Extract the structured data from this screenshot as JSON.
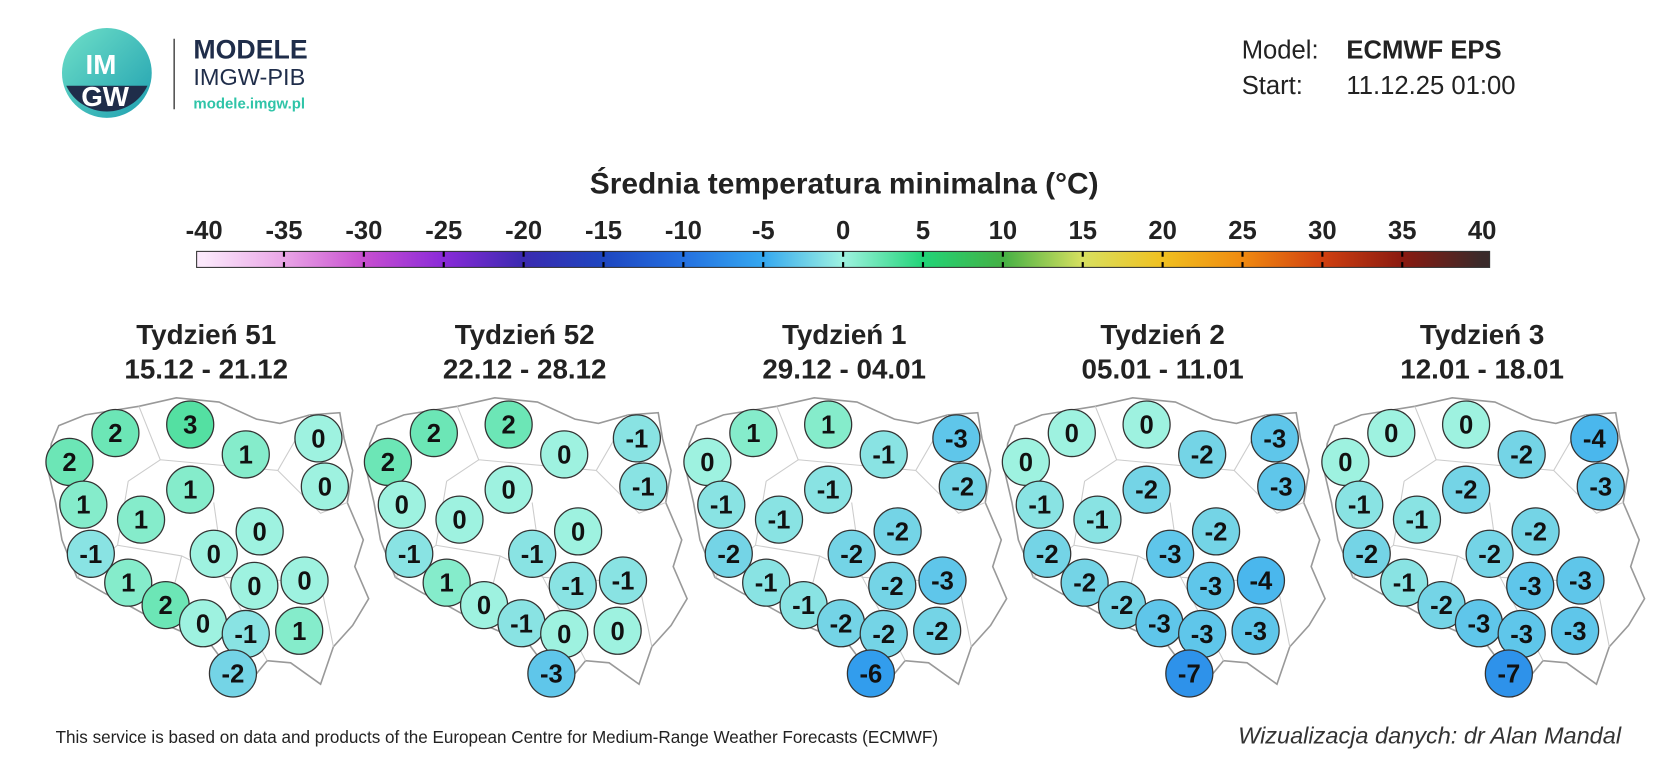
{
  "header": {
    "logo": {
      "top": "IM",
      "bottom": "GW"
    },
    "brand": "MODELE",
    "org": "IMGW-PIB",
    "url": "modele.imgw.pl",
    "model_label": "Model:",
    "model": "ECMWF EPS",
    "start_label": "Start:",
    "start": "11.12.25 01:00"
  },
  "colorbar": {
    "title": "Średnia temperatura minimalna (°C)",
    "ticks": [
      -40,
      -35,
      -30,
      -25,
      -20,
      -15,
      -10,
      -5,
      0,
      5,
      10,
      15,
      20,
      25,
      30,
      35,
      40
    ],
    "colors": [
      "#fbe8fb",
      "#e9a5e6",
      "#c84fd0",
      "#8a2ad8",
      "#3a2ab0",
      "#1e46c0",
      "#2470e0",
      "#35a8f0",
      "#9ef2e0",
      "#22d478",
      "#44b044",
      "#d8e060",
      "#f0c020",
      "#f08a10",
      "#d04010",
      "#8a1a10",
      "#3a2a2a"
    ]
  },
  "maps": [
    {
      "title": "Tydzień 51",
      "dates": "15.12 - 21.12",
      "values": [
        2,
        3,
        0,
        2,
        1,
        0,
        1,
        1,
        1,
        0,
        -1,
        0,
        1,
        0,
        0,
        2,
        0,
        -1,
        1,
        -2
      ]
    },
    {
      "title": "Tydzień 52",
      "dates": "22.12 - 28.12",
      "values": [
        2,
        2,
        -1,
        2,
        0,
        -1,
        0,
        0,
        0,
        0,
        -1,
        -1,
        1,
        -1,
        -1,
        0,
        -1,
        0,
        0,
        -3
      ]
    },
    {
      "title": "Tydzień 1",
      "dates": "29.12 - 04.01",
      "values": [
        1,
        1,
        -3,
        0,
        -1,
        -2,
        -1,
        -1,
        -1,
        -2,
        -2,
        -2,
        -1,
        -2,
        -3,
        -1,
        -2,
        -2,
        -2,
        -6
      ]
    },
    {
      "title": "Tydzień 2",
      "dates": "05.01 - 11.01",
      "values": [
        0,
        0,
        -3,
        0,
        -2,
        -3,
        -2,
        -1,
        -1,
        -2,
        -2,
        -3,
        -2,
        -3,
        -4,
        -2,
        -3,
        -3,
        -3,
        -7
      ]
    },
    {
      "title": "Tydzień 3",
      "dates": "12.01 - 18.01",
      "values": [
        0,
        0,
        -4,
        0,
        -2,
        -3,
        -2,
        -1,
        -1,
        -2,
        -2,
        -2,
        -1,
        -3,
        -3,
        -2,
        -3,
        -3,
        -3,
        -7
      ]
    }
  ],
  "footer": {
    "source": "This service is based on data and products of the European Centre for Medium-Range Weather Forecasts (ECMWF)",
    "credit": "Wizualizacja danych: dr Alan Mandal"
  }
}
